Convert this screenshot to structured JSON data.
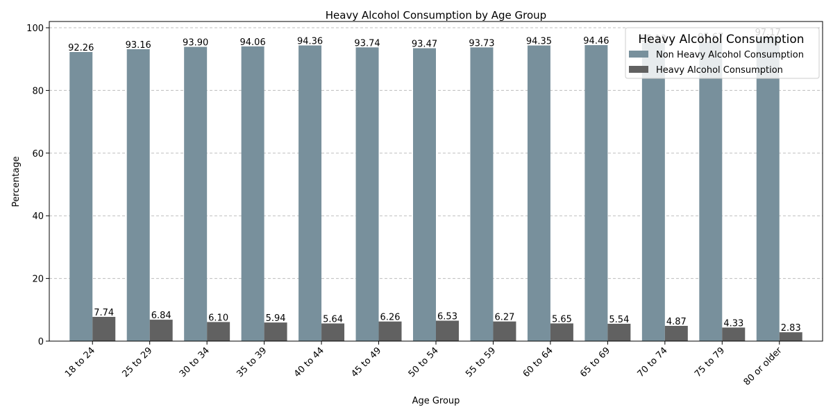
{
  "chart_data": {
    "type": "bar",
    "title": "Heavy Alcohol Consumption by Age Group",
    "xlabel": "Age Group",
    "ylabel": "Percentage",
    "ylim": [
      0,
      102
    ],
    "yticks": [
      0,
      20,
      40,
      60,
      80,
      100
    ],
    "grid": "y-dashed",
    "legend_title": "Heavy Alcohol Consumption",
    "legend_position": "top-right",
    "categories": [
      "18 to 24",
      "25 to 29",
      "30 to 34",
      "35 to 39",
      "40 to 44",
      "45 to 49",
      "50 to 54",
      "55 to 59",
      "60 to 64",
      "65 to 69",
      "70 to 74",
      "75 to 79",
      "80 or older"
    ],
    "series": [
      {
        "name": "Non Heavy Alcohol Consumption",
        "color": "#78909c",
        "values": [
          92.26,
          93.16,
          93.9,
          94.06,
          94.36,
          93.74,
          93.47,
          93.73,
          94.35,
          94.46,
          95.13,
          95.67,
          97.17
        ],
        "labels": [
          "92.26",
          "93.16",
          "93.90",
          "94.06",
          "94.36",
          "93.74",
          "93.47",
          "93.73",
          "94.35",
          "94.46",
          "95.13",
          "95.67",
          "97.17"
        ]
      },
      {
        "name": "Heavy Alcohol Consumption",
        "color": "#616161",
        "values": [
          7.74,
          6.84,
          6.1,
          5.94,
          5.64,
          6.26,
          6.53,
          6.27,
          5.65,
          5.54,
          4.87,
          4.33,
          2.83
        ],
        "labels": [
          "7.74",
          "6.84",
          "6.10",
          "5.94",
          "5.64",
          "6.26",
          "6.53",
          "6.27",
          "5.65",
          "5.54",
          "4.87",
          "4.33",
          "2.83"
        ]
      }
    ]
  }
}
